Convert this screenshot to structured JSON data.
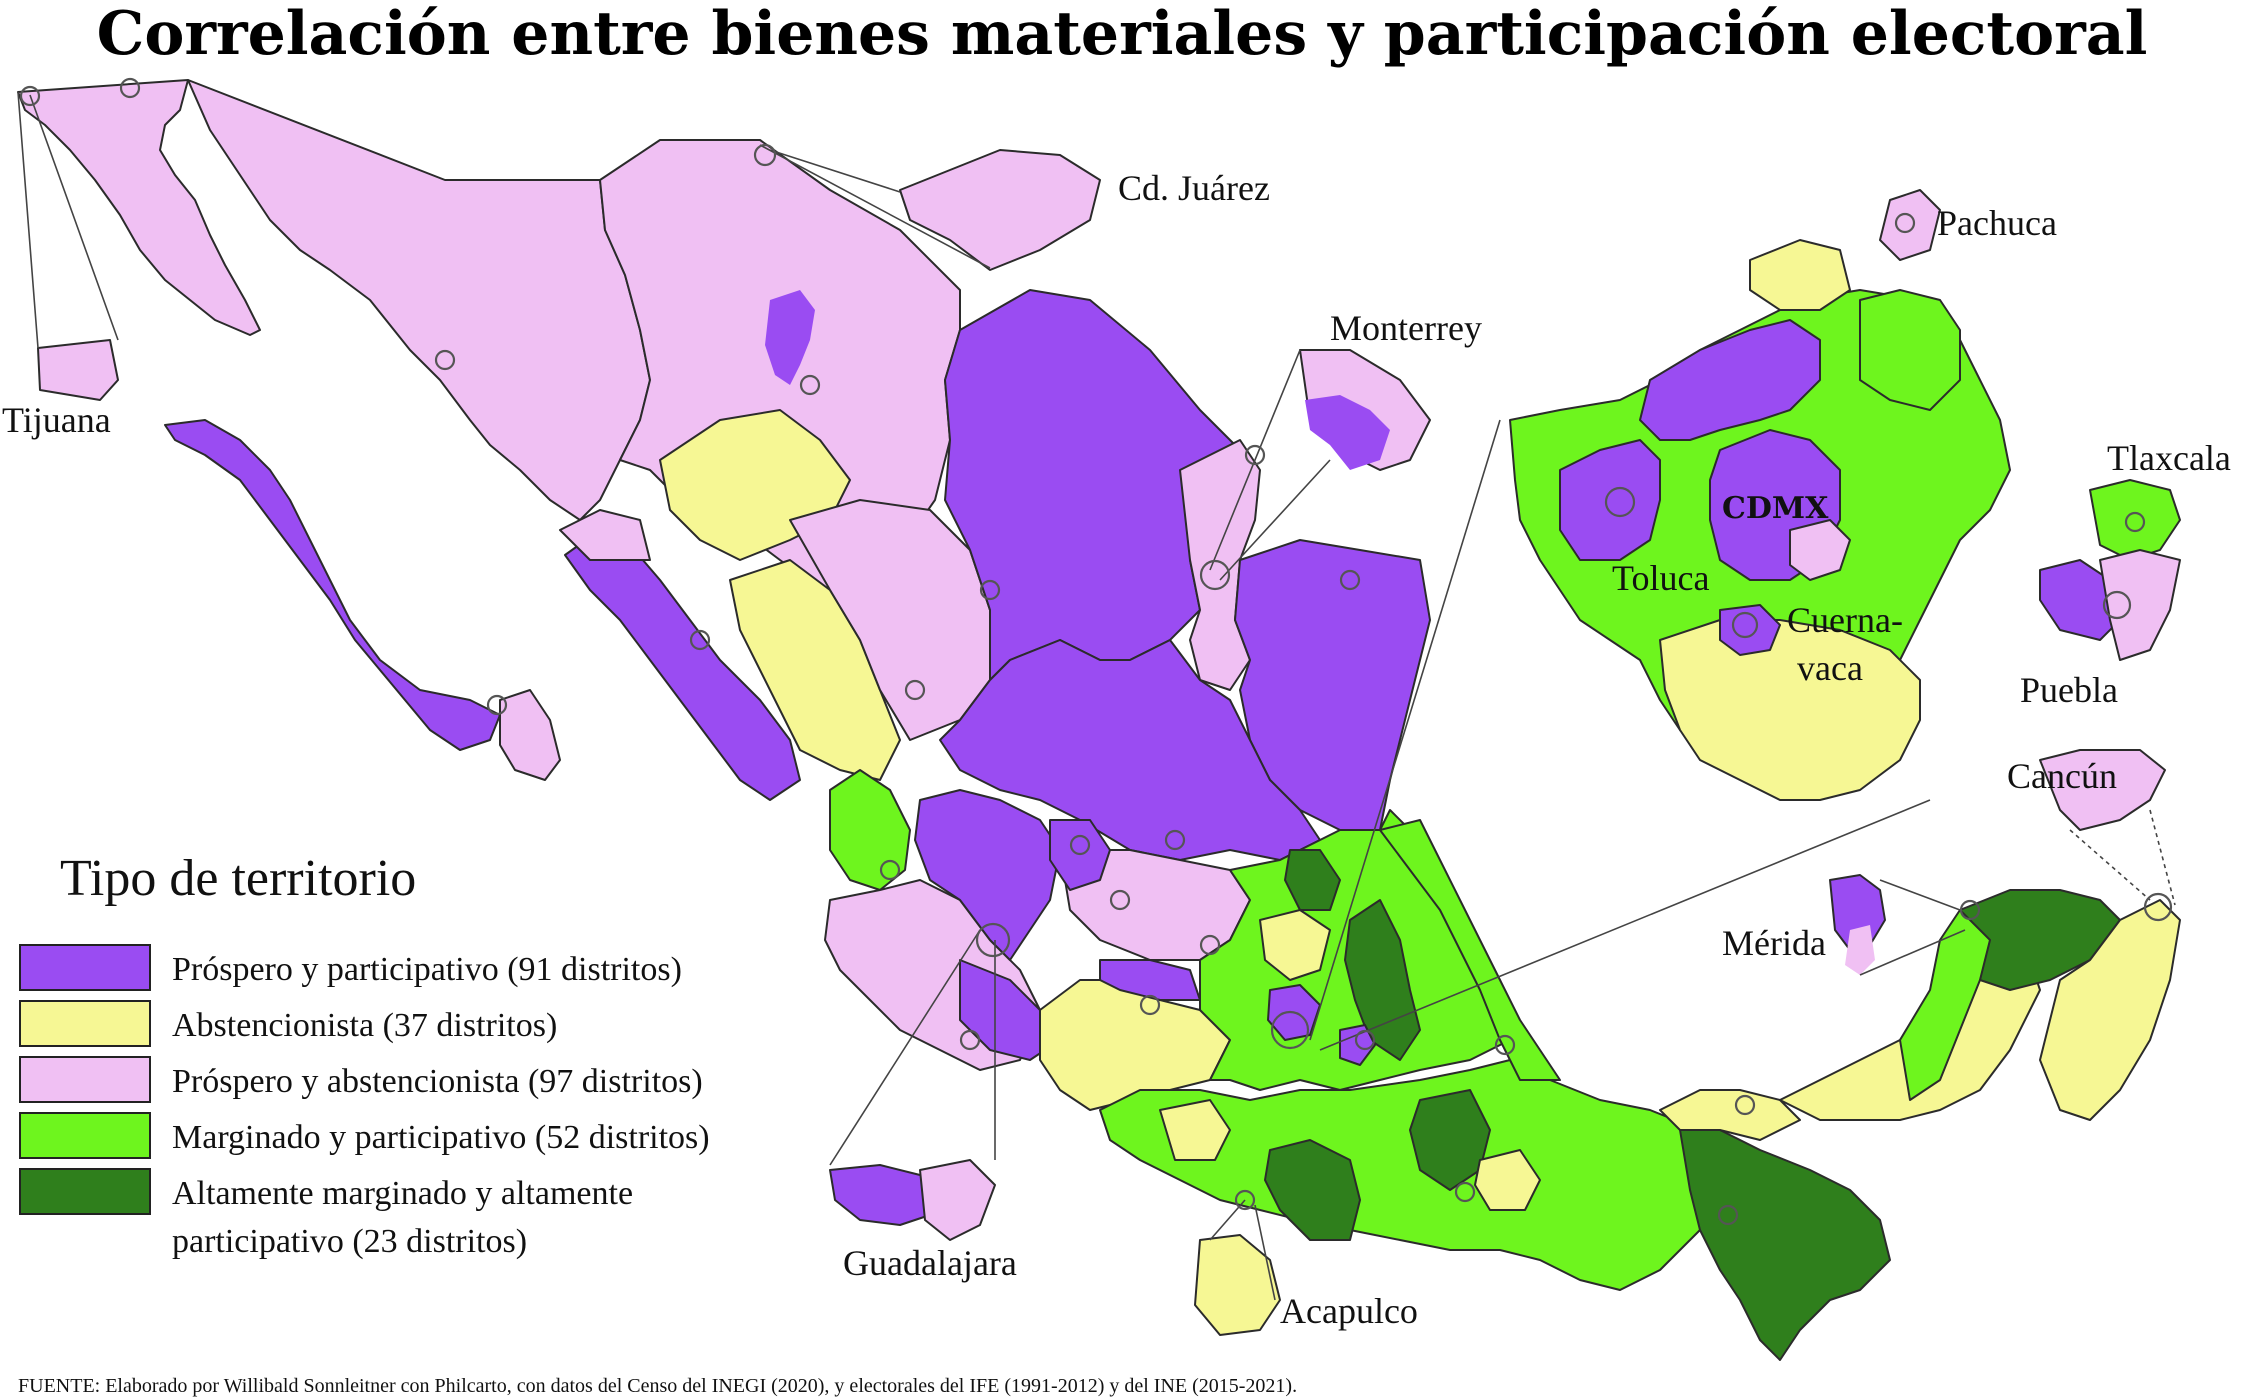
{
  "title": "Correlación entre bienes materiales y participación electoral",
  "colors": {
    "prospero_participativo": "#9a4cf2",
    "abstencionista": "#f6f794",
    "prospero_abstencionista": "#f0c0f3",
    "marginado_participativo": "#6ef51e",
    "altamente_marginado": "#2f7f1c"
  },
  "legend": {
    "heading": "Tipo de territorio",
    "items": [
      {
        "label": "Próspero y participativo (91 distritos)",
        "color": "#9a4cf2"
      },
      {
        "label": "Abstencionista (37 distritos)",
        "color": "#f6f794"
      },
      {
        "label": "Próspero y abstencionista (97 distritos)",
        "color": "#f0c0f3"
      },
      {
        "label": "Marginado y participativo (52 distritos)",
        "color": "#6ef51e"
      },
      {
        "label": "Altamente marginado y altamente",
        "label_line2": "participativo (23 distritos)",
        "color": "#2f7f1c"
      }
    ]
  },
  "cities": {
    "tijuana": "Tijuana",
    "cd_juarez": "Cd. Juárez",
    "monterrey": "Monterrey",
    "pachuca": "Pachuca",
    "tlaxcala": "Tlaxcala",
    "cdmx": "CDMX",
    "toluca": "Toluca",
    "cuernavaca_1": "Cuerna-",
    "cuernavaca_2": "vaca",
    "puebla": "Puebla",
    "cancun": "Cancún",
    "merida": "Mérida",
    "guadalajara": "Guadalajara",
    "acapulco": "Acapulco"
  },
  "source": "FUENTE: Elaborado por Willibald Sonnleitner con Philcarto, con datos del Censo del INEGI (2020), y electorales del IFE (1991-2012) y del INE (2015-2021)."
}
